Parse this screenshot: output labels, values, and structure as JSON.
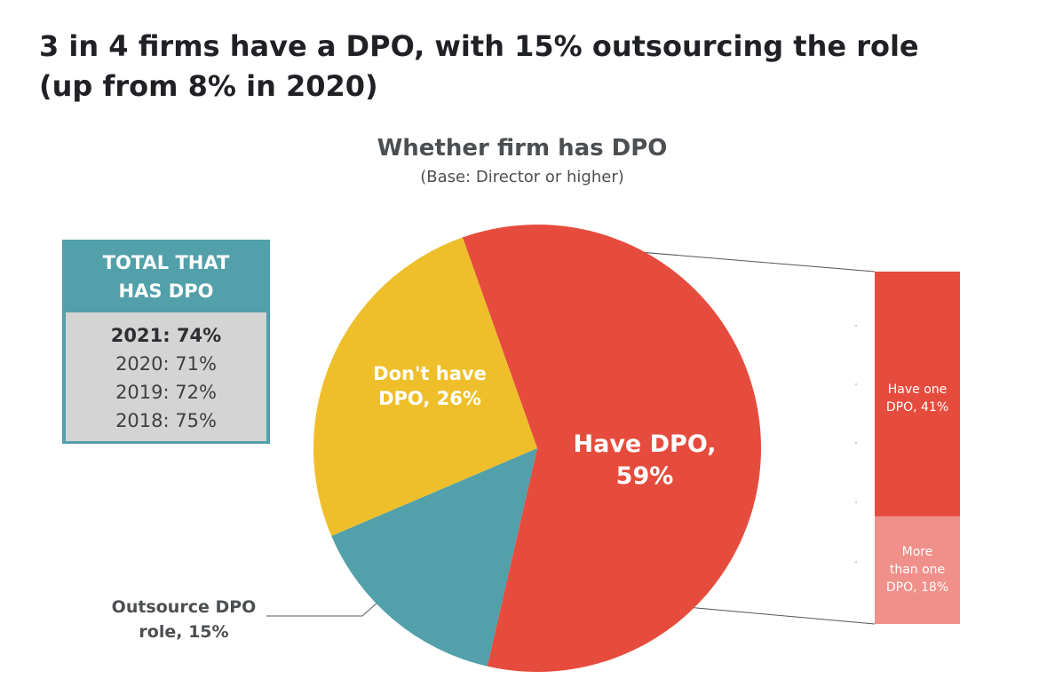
{
  "headline": {
    "line1": "3 in 4 firms have a DPO, with 15% outsourcing the role",
    "line2": "(up from 8% in 2020)"
  },
  "total_box": {
    "title_line1": "TOTAL THAT",
    "title_line2": "HAS DPO",
    "rows": [
      "2021: 74%",
      "2020: 71%",
      "2019: 72%",
      "2018: 75%"
    ]
  },
  "colors": {
    "have": "#e64c3d",
    "dont_have": "#eebf2a",
    "outsource": "#52a0aa",
    "more_than_one": "#f0908a"
  },
  "chart_data": [
    {
      "type": "pie",
      "title": "Whether firm has DPO",
      "subtitle": "(Base: Director or higher)",
      "slices": [
        {
          "name": "Have DPO",
          "value": 59,
          "label_lines": [
            "Have DPO,",
            "59%"
          ]
        },
        {
          "name": "Outsource DPO role",
          "value": 15,
          "label_lines": [
            "Outsource DPO",
            "role, 15%"
          ]
        },
        {
          "name": "Don't have DPO",
          "value": 26,
          "label_lines": [
            "Don't have",
            "DPO, 26%"
          ]
        }
      ]
    },
    {
      "type": "bar",
      "stacked": true,
      "breakdown_of": "Have DPO",
      "segments": [
        {
          "name": "Have one DPO",
          "value": 41,
          "label_lines": [
            "Have one",
            "DPO, 41%"
          ]
        },
        {
          "name": "More than one DPO",
          "value": 18,
          "label_lines": [
            "More",
            "than one",
            "DPO, 18%"
          ]
        }
      ]
    }
  ]
}
